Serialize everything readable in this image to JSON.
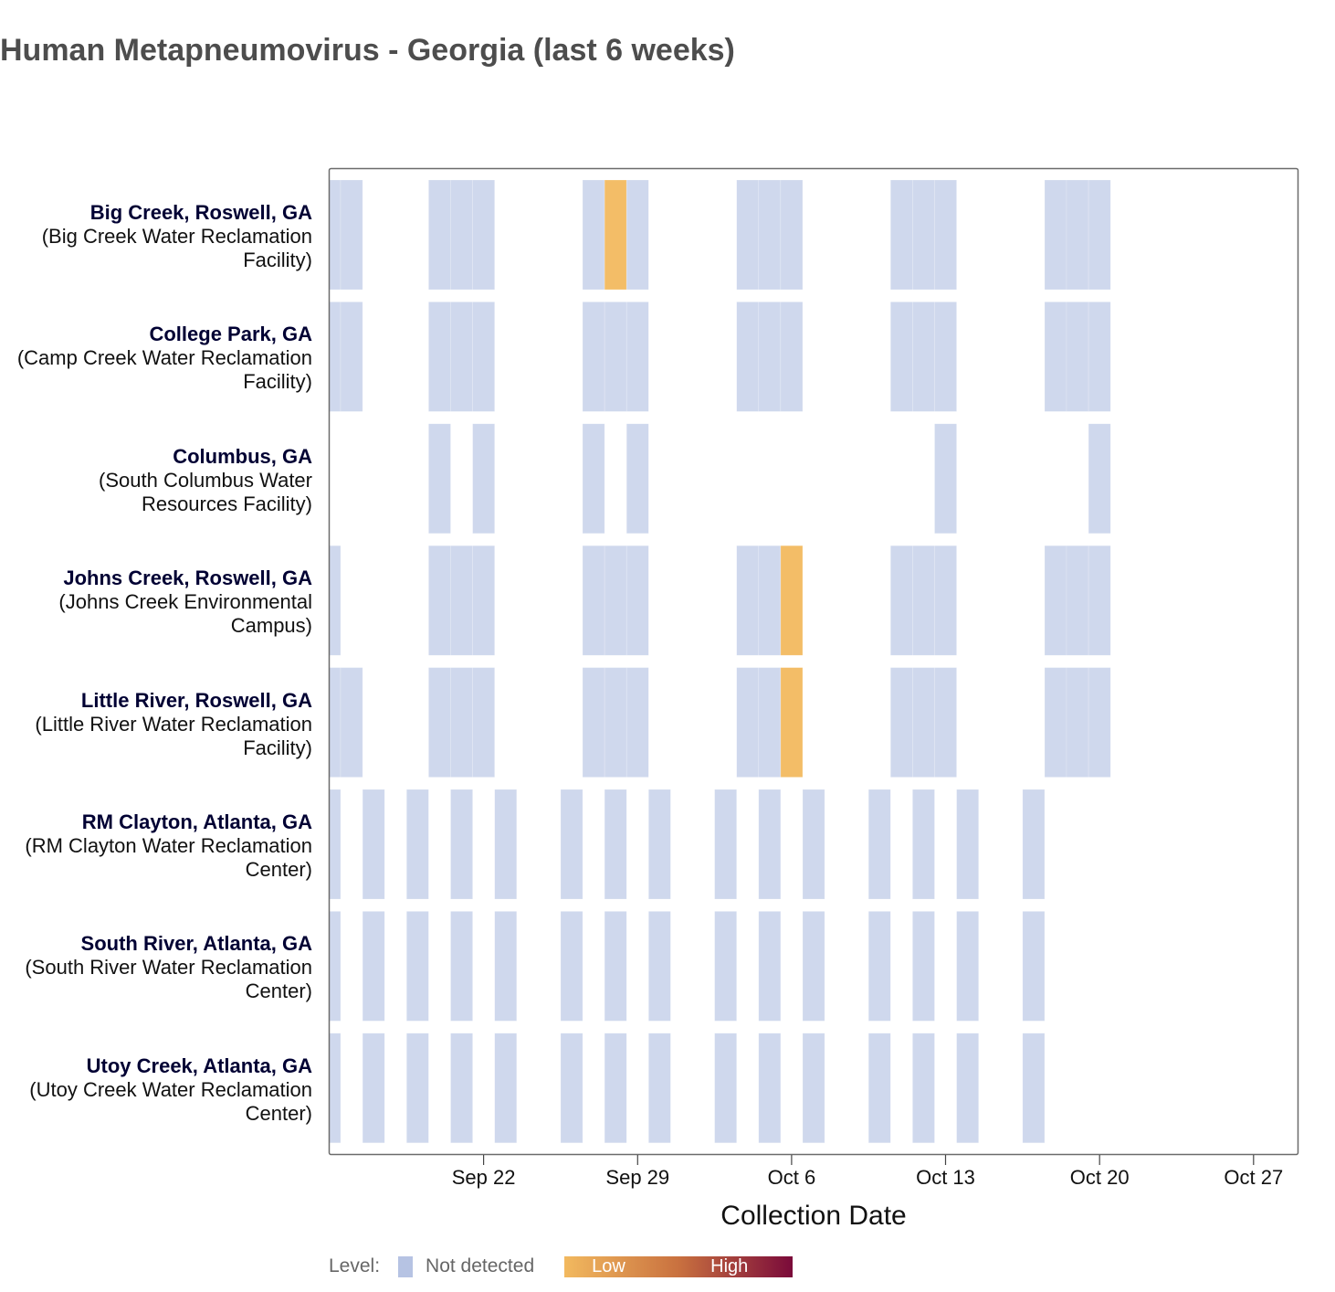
{
  "chart_data": {
    "type": "heatmap",
    "title": "Human Metapneumovirus - Georgia (last 6 weeks)",
    "xlabel": "Collection Date",
    "ylabel": "",
    "x_axis": {
      "type": "date",
      "range": [
        "2024-09-15",
        "2024-10-29"
      ],
      "ticks": [
        "2024-09-22",
        "2024-09-29",
        "2024-10-06",
        "2024-10-13",
        "2024-10-20",
        "2024-10-27"
      ],
      "tick_labels": [
        "Sep 22",
        "Sep 29",
        "Oct 6",
        "Oct 13",
        "Oct 20",
        "Oct 27"
      ]
    },
    "grid": false,
    "legend": {
      "position": "bottom-left",
      "title": "Level:",
      "not_detected_label": "Not detected",
      "low_label": "Low",
      "high_label": "High"
    },
    "colors": {
      "not_detected": "#b6c3e3",
      "low": "#f2b95f",
      "mid": "#c9713f",
      "high": "#7a0a3a"
    },
    "sites": [
      {
        "name": "Big Creek, Roswell, GA",
        "facility": "(Big Creek Water Reclamation Facility)",
        "samples": [
          {
            "date": "2024-09-15",
            "level": "Not detected"
          },
          {
            "date": "2024-09-16",
            "level": "Not detected"
          },
          {
            "date": "2024-09-20",
            "level": "Not detected"
          },
          {
            "date": "2024-09-21",
            "level": "Not detected"
          },
          {
            "date": "2024-09-22",
            "level": "Not detected"
          },
          {
            "date": "2024-09-27",
            "level": "Not detected"
          },
          {
            "date": "2024-09-28",
            "level": "Low"
          },
          {
            "date": "2024-09-29",
            "level": "Not detected"
          },
          {
            "date": "2024-10-04",
            "level": "Not detected"
          },
          {
            "date": "2024-10-05",
            "level": "Not detected"
          },
          {
            "date": "2024-10-06",
            "level": "Not detected"
          },
          {
            "date": "2024-10-11",
            "level": "Not detected"
          },
          {
            "date": "2024-10-12",
            "level": "Not detected"
          },
          {
            "date": "2024-10-13",
            "level": "Not detected"
          },
          {
            "date": "2024-10-18",
            "level": "Not detected"
          },
          {
            "date": "2024-10-19",
            "level": "Not detected"
          },
          {
            "date": "2024-10-20",
            "level": "Not detected"
          }
        ]
      },
      {
        "name": "College Park, GA",
        "facility": "(Camp Creek Water Reclamation Facility)",
        "samples": [
          {
            "date": "2024-09-15",
            "level": "Not detected"
          },
          {
            "date": "2024-09-16",
            "level": "Not detected"
          },
          {
            "date": "2024-09-20",
            "level": "Not detected"
          },
          {
            "date": "2024-09-21",
            "level": "Not detected"
          },
          {
            "date": "2024-09-22",
            "level": "Not detected"
          },
          {
            "date": "2024-09-27",
            "level": "Not detected"
          },
          {
            "date": "2024-09-28",
            "level": "Not detected"
          },
          {
            "date": "2024-09-29",
            "level": "Not detected"
          },
          {
            "date": "2024-10-04",
            "level": "Not detected"
          },
          {
            "date": "2024-10-05",
            "level": "Not detected"
          },
          {
            "date": "2024-10-06",
            "level": "Not detected"
          },
          {
            "date": "2024-10-11",
            "level": "Not detected"
          },
          {
            "date": "2024-10-12",
            "level": "Not detected"
          },
          {
            "date": "2024-10-13",
            "level": "Not detected"
          },
          {
            "date": "2024-10-18",
            "level": "Not detected"
          },
          {
            "date": "2024-10-19",
            "level": "Not detected"
          },
          {
            "date": "2024-10-20",
            "level": "Not detected"
          }
        ]
      },
      {
        "name": "Columbus, GA",
        "facility": "(South Columbus Water Resources Facility)",
        "samples": [
          {
            "date": "2024-09-20",
            "level": "Not detected"
          },
          {
            "date": "2024-09-22",
            "level": "Not detected"
          },
          {
            "date": "2024-09-27",
            "level": "Not detected"
          },
          {
            "date": "2024-09-29",
            "level": "Not detected"
          },
          {
            "date": "2024-10-13",
            "level": "Not detected"
          },
          {
            "date": "2024-10-20",
            "level": "Not detected"
          }
        ]
      },
      {
        "name": "Johns Creek, Roswell, GA",
        "facility": "(Johns Creek Environmental Campus)",
        "samples": [
          {
            "date": "2024-09-15",
            "level": "Not detected"
          },
          {
            "date": "2024-09-20",
            "level": "Not detected"
          },
          {
            "date": "2024-09-21",
            "level": "Not detected"
          },
          {
            "date": "2024-09-22",
            "level": "Not detected"
          },
          {
            "date": "2024-09-27",
            "level": "Not detected"
          },
          {
            "date": "2024-09-28",
            "level": "Not detected"
          },
          {
            "date": "2024-09-29",
            "level": "Not detected"
          },
          {
            "date": "2024-10-04",
            "level": "Not detected"
          },
          {
            "date": "2024-10-05",
            "level": "Not detected"
          },
          {
            "date": "2024-10-06",
            "level": "Low"
          },
          {
            "date": "2024-10-11",
            "level": "Not detected"
          },
          {
            "date": "2024-10-12",
            "level": "Not detected"
          },
          {
            "date": "2024-10-13",
            "level": "Not detected"
          },
          {
            "date": "2024-10-18",
            "level": "Not detected"
          },
          {
            "date": "2024-10-19",
            "level": "Not detected"
          },
          {
            "date": "2024-10-20",
            "level": "Not detected"
          }
        ]
      },
      {
        "name": "Little River, Roswell, GA",
        "facility": "(Little River Water Reclamation Facility)",
        "samples": [
          {
            "date": "2024-09-15",
            "level": "Not detected"
          },
          {
            "date": "2024-09-16",
            "level": "Not detected"
          },
          {
            "date": "2024-09-20",
            "level": "Not detected"
          },
          {
            "date": "2024-09-21",
            "level": "Not detected"
          },
          {
            "date": "2024-09-22",
            "level": "Not detected"
          },
          {
            "date": "2024-09-27",
            "level": "Not detected"
          },
          {
            "date": "2024-09-28",
            "level": "Not detected"
          },
          {
            "date": "2024-09-29",
            "level": "Not detected"
          },
          {
            "date": "2024-10-04",
            "level": "Not detected"
          },
          {
            "date": "2024-10-05",
            "level": "Not detected"
          },
          {
            "date": "2024-10-06",
            "level": "Low"
          },
          {
            "date": "2024-10-11",
            "level": "Not detected"
          },
          {
            "date": "2024-10-12",
            "level": "Not detected"
          },
          {
            "date": "2024-10-13",
            "level": "Not detected"
          },
          {
            "date": "2024-10-18",
            "level": "Not detected"
          },
          {
            "date": "2024-10-19",
            "level": "Not detected"
          },
          {
            "date": "2024-10-20",
            "level": "Not detected"
          }
        ]
      },
      {
        "name": "RM Clayton, Atlanta, GA",
        "facility": "(RM Clayton Water Reclamation Center)",
        "samples": [
          {
            "date": "2024-09-15",
            "level": "Not detected"
          },
          {
            "date": "2024-09-17",
            "level": "Not detected"
          },
          {
            "date": "2024-09-19",
            "level": "Not detected"
          },
          {
            "date": "2024-09-21",
            "level": "Not detected"
          },
          {
            "date": "2024-09-23",
            "level": "Not detected"
          },
          {
            "date": "2024-09-26",
            "level": "Not detected"
          },
          {
            "date": "2024-09-28",
            "level": "Not detected"
          },
          {
            "date": "2024-09-30",
            "level": "Not detected"
          },
          {
            "date": "2024-10-03",
            "level": "Not detected"
          },
          {
            "date": "2024-10-05",
            "level": "Not detected"
          },
          {
            "date": "2024-10-07",
            "level": "Not detected"
          },
          {
            "date": "2024-10-10",
            "level": "Not detected"
          },
          {
            "date": "2024-10-12",
            "level": "Not detected"
          },
          {
            "date": "2024-10-14",
            "level": "Not detected"
          },
          {
            "date": "2024-10-17",
            "level": "Not detected"
          }
        ]
      },
      {
        "name": "South River, Atlanta, GA",
        "facility": "(South River Water Reclamation Center)",
        "samples": [
          {
            "date": "2024-09-15",
            "level": "Not detected"
          },
          {
            "date": "2024-09-17",
            "level": "Not detected"
          },
          {
            "date": "2024-09-19",
            "level": "Not detected"
          },
          {
            "date": "2024-09-21",
            "level": "Not detected"
          },
          {
            "date": "2024-09-23",
            "level": "Not detected"
          },
          {
            "date": "2024-09-26",
            "level": "Not detected"
          },
          {
            "date": "2024-09-28",
            "level": "Not detected"
          },
          {
            "date": "2024-09-30",
            "level": "Not detected"
          },
          {
            "date": "2024-10-03",
            "level": "Not detected"
          },
          {
            "date": "2024-10-05",
            "level": "Not detected"
          },
          {
            "date": "2024-10-07",
            "level": "Not detected"
          },
          {
            "date": "2024-10-10",
            "level": "Not detected"
          },
          {
            "date": "2024-10-12",
            "level": "Not detected"
          },
          {
            "date": "2024-10-14",
            "level": "Not detected"
          },
          {
            "date": "2024-10-17",
            "level": "Not detected"
          }
        ]
      },
      {
        "name": "Utoy Creek, Atlanta, GA",
        "facility": "(Utoy Creek Water Reclamation Center)",
        "samples": [
          {
            "date": "2024-09-15",
            "level": "Not detected"
          },
          {
            "date": "2024-09-17",
            "level": "Not detected"
          },
          {
            "date": "2024-09-19",
            "level": "Not detected"
          },
          {
            "date": "2024-09-21",
            "level": "Not detected"
          },
          {
            "date": "2024-09-23",
            "level": "Not detected"
          },
          {
            "date": "2024-09-26",
            "level": "Not detected"
          },
          {
            "date": "2024-09-28",
            "level": "Not detected"
          },
          {
            "date": "2024-09-30",
            "level": "Not detected"
          },
          {
            "date": "2024-10-03",
            "level": "Not detected"
          },
          {
            "date": "2024-10-05",
            "level": "Not detected"
          },
          {
            "date": "2024-10-07",
            "level": "Not detected"
          },
          {
            "date": "2024-10-10",
            "level": "Not detected"
          },
          {
            "date": "2024-10-12",
            "level": "Not detected"
          },
          {
            "date": "2024-10-14",
            "level": "Not detected"
          },
          {
            "date": "2024-10-17",
            "level": "Not detected"
          }
        ]
      }
    ]
  }
}
